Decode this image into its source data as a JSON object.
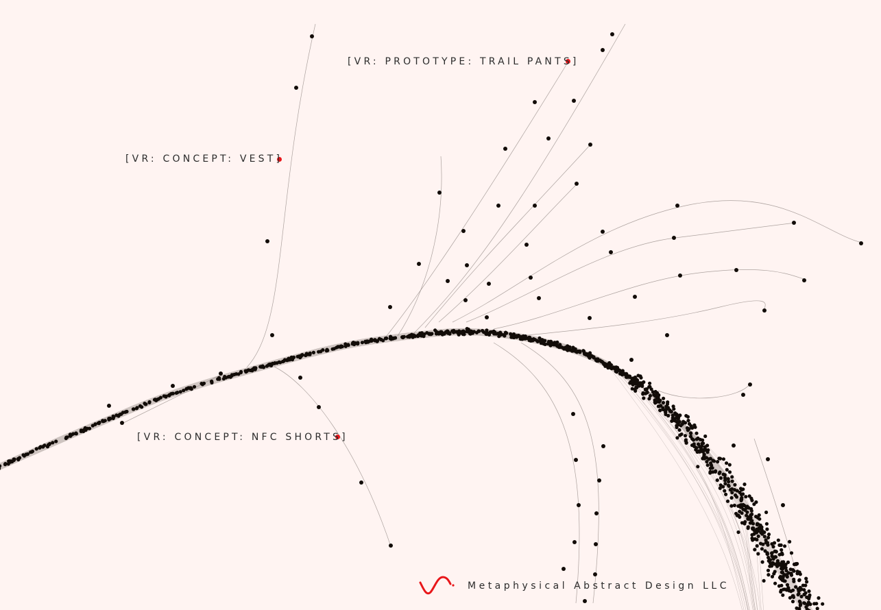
{
  "colors": {
    "background": "#fff4f2",
    "node": "#120c08",
    "edge": "#8f8682",
    "highlight": "#e8161a",
    "text": "#2b2b2b"
  },
  "labels": [
    {
      "id": "trail-pants",
      "text": "[VR: PROTOTYPE: TRAIL PANTS]"
    },
    {
      "id": "vest",
      "text": "[VR: CONCEPT: VEST]"
    },
    {
      "id": "nfc-shorts",
      "text": "[VR: CONCEPT: NFC SHORTS]"
    }
  ],
  "footer": {
    "logo_icon": "sine-wave-icon",
    "company": "Metaphysical Abstract Design LLC"
  }
}
